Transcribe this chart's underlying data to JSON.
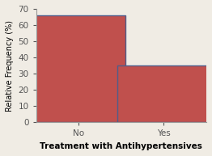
{
  "categories": [
    "No",
    "Yes"
  ],
  "values": [
    66.0,
    35.0
  ],
  "bar_color": "#c0504d",
  "bar_edgecolor": "#4f5d8a",
  "bar_edgewidth": 1.0,
  "bar_width": 0.55,
  "x_positions": [
    0.25,
    0.75
  ],
  "xlabel": "Treatment with Antihypertensives",
  "ylabel": "Relative Frequency (%)",
  "ylim": [
    0,
    70
  ],
  "xlim": [
    0.0,
    1.0
  ],
  "yticks": [
    0,
    10,
    20,
    30,
    40,
    50,
    60,
    70
  ],
  "xlabel_fontsize": 7.5,
  "ylabel_fontsize": 7.0,
  "tick_fontsize": 7.5,
  "background_color": "#f0ece4",
  "spine_color": "#999999",
  "xlabel_fontweight": "bold"
}
